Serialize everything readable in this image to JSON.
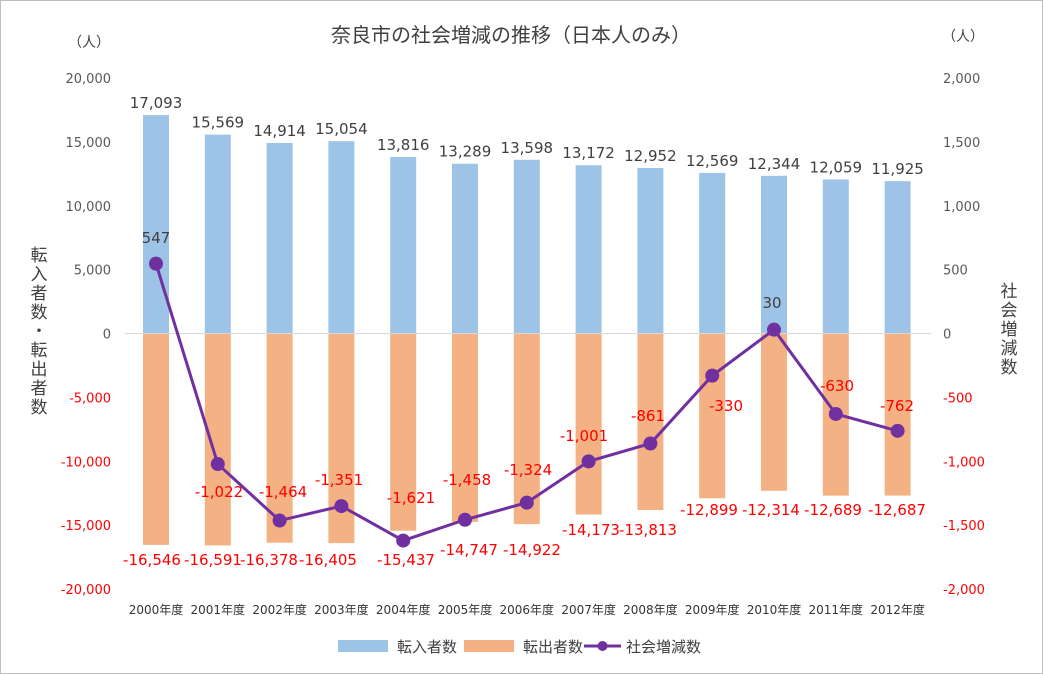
{
  "chart_data": {
    "type": "bar",
    "title": "奈良市の社会増減の推移（日本人のみ）",
    "left_unit": "（人）",
    "right_unit": "（人）",
    "ylabel": "転入者数・転出者数",
    "y2label": "社会増減数",
    "ylim": [
      -20000,
      20000
    ],
    "y2lim": [
      -2000,
      2000
    ],
    "left_ticks": [
      "20,000",
      "15,000",
      "10,000",
      "5,000",
      "0",
      "-5,000",
      "-10,000",
      "-15,000",
      "-20,000"
    ],
    "right_ticks": [
      "2,000",
      "1,500",
      "1,000",
      "500",
      "0",
      "-500",
      "-1,000",
      "-1,500",
      "-2,000"
    ],
    "categories": [
      "2000年度",
      "2001年度",
      "2002年度",
      "2003年度",
      "2004年度",
      "2005年度",
      "2006年度",
      "2007年度",
      "2008年度",
      "2009年度",
      "2010年度",
      "2011年度",
      "2012年度"
    ],
    "series": [
      {
        "name": "転入者数",
        "type": "bar",
        "color": "#9dc3e6",
        "values": [
          17093,
          15569,
          14914,
          15054,
          13816,
          13289,
          13598,
          13172,
          12952,
          12569,
          12344,
          12059,
          11925
        ],
        "labels": [
          "17,093",
          "15,569",
          "14,914",
          "15,054",
          "13,816",
          "13,289",
          "13,598",
          "13,172",
          "12,952",
          "12,569",
          "12,344",
          "12,059",
          "11,925"
        ]
      },
      {
        "name": "転出者数",
        "type": "bar",
        "color": "#f4b183",
        "values": [
          -16546,
          -16591,
          -16378,
          -16405,
          -15437,
          -14747,
          -14922,
          -14173,
          -13813,
          -12899,
          -12314,
          -12689,
          -12687
        ],
        "labels": [
          "-16,546",
          "-16,591",
          "-16,378",
          "-16,405",
          "-15,437",
          "-14,747",
          "-14,922",
          "-14,173",
          "-13,813",
          "-12,899",
          "-12,314",
          "-12,689",
          "-12,687"
        ]
      },
      {
        "name": "社会増減数",
        "type": "line",
        "axis": "right",
        "color": "#7030a0",
        "values": [
          547,
          -1022,
          -1464,
          -1351,
          -1621,
          -1458,
          -1324,
          -1001,
          -861,
          -330,
          30,
          -630,
          -762
        ],
        "labels": [
          "547",
          "-1,022",
          "-1,464",
          "-1,351",
          "-1,621",
          "-1,458",
          "-1,324",
          "-1,001",
          "-861",
          "-330",
          "30",
          "-630",
          "-762"
        ]
      }
    ],
    "legend_position": "bottom",
    "grid": false
  }
}
